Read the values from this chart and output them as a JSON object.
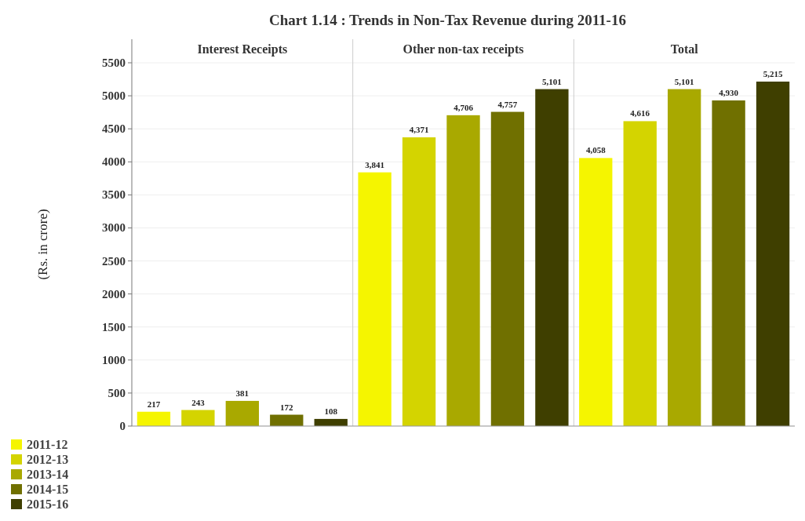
{
  "chart_data": {
    "type": "bar",
    "title": "Chart 1.14 : Trends in Non-Tax Revenue during 2011-16",
    "ylabel": "(Rs. in crore)",
    "categories": [
      "Interest Receipts",
      "Other non-tax receipts",
      "Total"
    ],
    "series": [
      {
        "name": "2011-12",
        "color": "#f5f500",
        "values": [
          217,
          3841,
          4058
        ],
        "value_labels": [
          "217",
          "3,841",
          "4,058"
        ]
      },
      {
        "name": "2012-13",
        "color": "#d4d400",
        "values": [
          243,
          4371,
          4616
        ],
        "value_labels": [
          "243",
          "4,371",
          "4,616"
        ]
      },
      {
        "name": "2013-14",
        "color": "#a9a900",
        "values": [
          381,
          4706,
          5101
        ],
        "value_labels": [
          "381",
          "4,706",
          "5,101"
        ]
      },
      {
        "name": "2014-15",
        "color": "#707000",
        "values": [
          172,
          4757,
          4930
        ],
        "value_labels": [
          "172",
          "4,757",
          "4,930"
        ]
      },
      {
        "name": "2015-16",
        "color": "#3f3f00",
        "values": [
          108,
          5101,
          5215
        ],
        "value_labels": [
          "108",
          "5,101",
          "5,215"
        ]
      }
    ],
    "ylim": [
      0,
      5500
    ],
    "yticks": [
      0,
      500,
      1000,
      1500,
      2000,
      2500,
      3000,
      3500,
      4000,
      4500,
      5000,
      5500
    ],
    "grid": "y",
    "legend": "bottom left"
  }
}
